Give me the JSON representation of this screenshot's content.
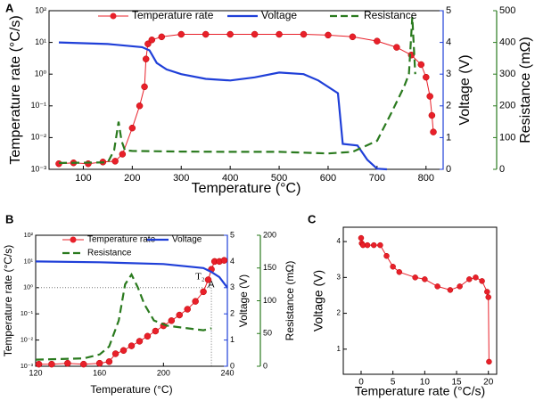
{
  "chart_data": [
    {
      "type": "line",
      "panel_label": "A",
      "xlabel": "Temperature (°C)",
      "ylabel": "Temperature rate (°C/s)",
      "y2label": "Voltage (V)",
      "y3label": "Resistance (mΩ)",
      "xlim": [
        30,
        835
      ],
      "xticks": [
        100,
        200,
        300,
        400,
        500,
        600,
        700,
        800
      ],
      "ylog": true,
      "ylim": [
        0.001,
        100
      ],
      "yticks": [
        {
          "value": 0.001,
          "label": "10⁻³"
        },
        {
          "value": 0.01,
          "label": "10⁻²"
        },
        {
          "value": 0.1,
          "label": "10⁻¹"
        },
        {
          "value": 1,
          "label": "10⁰"
        },
        {
          "value": 10,
          "label": "10¹"
        },
        {
          "value": 100,
          "label": "10²"
        }
      ],
      "y2lim": [
        0,
        5
      ],
      "y2ticks": [
        0,
        1,
        2,
        3,
        4,
        5
      ],
      "y3lim": [
        0,
        500
      ],
      "y3ticks": [
        0,
        100,
        200,
        300,
        400,
        500
      ],
      "series": [
        {
          "name": "Temperature rate",
          "color": "#e8202a",
          "axis": "y",
          "marker": "circle",
          "x": [
            50,
            80,
            110,
            140,
            165,
            180,
            200,
            215,
            225,
            228,
            232,
            240,
            260,
            300,
            350,
            400,
            450,
            500,
            550,
            600,
            650,
            700,
            740,
            770,
            790,
            800,
            808,
            812,
            815
          ],
          "values": [
            0.0015,
            0.0016,
            0.0015,
            0.0017,
            0.0018,
            0.003,
            0.02,
            0.1,
            0.4,
            3,
            9,
            12,
            15,
            18,
            18,
            18,
            18,
            18,
            18,
            17,
            15,
            11,
            7,
            4,
            2,
            0.8,
            0.2,
            0.05,
            0.015
          ]
        },
        {
          "name": "Voltage",
          "color": "#1f3fd8",
          "axis": "y2",
          "x": [
            50,
            150,
            220,
            235,
            250,
            270,
            300,
            350,
            400,
            450,
            500,
            550,
            580,
            620,
            630,
            660,
            680,
            700,
            720
          ],
          "values": [
            4.0,
            3.95,
            3.85,
            3.75,
            3.35,
            3.15,
            3.0,
            2.85,
            2.8,
            2.9,
            3.05,
            3.0,
            2.8,
            2.4,
            0.8,
            0.75,
            0.3,
            0.02,
            0.0
          ]
        },
        {
          "name": "Resistance",
          "color": "#2a7a1e",
          "axis": "y3",
          "line_style": "dashed",
          "x": [
            50,
            150,
            163,
            172,
            178,
            185,
            200,
            300,
            400,
            500,
            600,
            650,
            700,
            730,
            755,
            765,
            772,
            778
          ],
          "values": [
            20,
            22,
            60,
            150,
            90,
            60,
            58,
            56,
            55,
            55,
            50,
            55,
            90,
            180,
            260,
            300,
            480,
            300
          ]
        }
      ]
    },
    {
      "type": "line",
      "panel_label": "B",
      "xlabel": "Temperature (°C)",
      "ylabel": "Temperature rate (°C/s)",
      "y2label": "Voltage (V)",
      "y3label": "Resistance (mΩ)",
      "xlim": [
        120,
        240
      ],
      "xticks": [
        120,
        160,
        200,
        240
      ],
      "ylog": true,
      "ylim": [
        0.001,
        100
      ],
      "yticks": [
        {
          "value": 0.001,
          "label": "10⁻³"
        },
        {
          "value": 0.01,
          "label": "10⁻²"
        },
        {
          "value": 0.1,
          "label": "10⁻¹"
        },
        {
          "value": 1,
          "label": "10⁰"
        },
        {
          "value": 10,
          "label": "10¹"
        },
        {
          "value": 100,
          "label": "10²"
        }
      ],
      "y2lim": [
        0,
        5
      ],
      "y2ticks": [
        0,
        1,
        2,
        3,
        4,
        5
      ],
      "y3lim": [
        0,
        200
      ],
      "y3ticks": [
        0,
        50,
        100,
        150,
        200
      ],
      "annotations": [
        "T₂",
        "A"
      ],
      "vline": 230,
      "hline": 1,
      "series": [
        {
          "name": "Temperature rate",
          "color": "#e8202a",
          "axis": "y",
          "marker": "circle",
          "x": [
            122,
            130,
            140,
            150,
            160,
            166,
            170,
            175,
            180,
            185,
            190,
            195,
            200,
            205,
            210,
            215,
            220,
            225,
            228,
            230,
            232,
            235,
            238
          ],
          "values": [
            0.0012,
            0.0012,
            0.0013,
            0.0012,
            0.0013,
            0.0015,
            0.003,
            0.004,
            0.006,
            0.009,
            0.014,
            0.022,
            0.035,
            0.055,
            0.09,
            0.15,
            0.3,
            0.7,
            2,
            5,
            10,
            10,
            11
          ]
        },
        {
          "name": "Voltage",
          "color": "#1f3fd8",
          "axis": "y2",
          "x": [
            120,
            160,
            200,
            225,
            230,
            235,
            240
          ],
          "values": [
            4.0,
            3.97,
            3.9,
            3.75,
            3.6,
            3.4,
            3.0
          ]
        },
        {
          "name": "Resistance",
          "color": "#2a7a1e",
          "axis": "y3",
          "line_style": "dashed",
          "x": [
            120,
            150,
            160,
            166,
            172,
            176,
            180,
            184,
            188,
            194,
            202,
            215,
            225,
            230
          ],
          "values": [
            10,
            12,
            18,
            30,
            70,
            125,
            140,
            120,
            95,
            70,
            62,
            58,
            55,
            58
          ]
        }
      ]
    },
    {
      "type": "line",
      "panel_label": "C",
      "xlabel": "Temperature rate (°C/s)",
      "ylabel": "Voltage (V)",
      "xlim": [
        -2.8,
        21.3
      ],
      "xticks": [
        0,
        5,
        10,
        15,
        20
      ],
      "ylim": [
        0.3,
        4.4
      ],
      "yticks": [
        1,
        2,
        3,
        4
      ],
      "series": [
        {
          "color": "#e8202a",
          "axis": "y",
          "marker": "circle",
          "x": [
            0,
            0.1,
            0.3,
            1,
            2,
            3,
            4,
            5,
            6,
            8.5,
            10,
            12,
            14,
            15.5,
            17,
            18,
            19,
            19.8,
            20,
            20.1
          ],
          "values": [
            4.1,
            3.95,
            3.9,
            3.9,
            3.9,
            3.9,
            3.6,
            3.3,
            3.15,
            3.0,
            2.95,
            2.75,
            2.65,
            2.75,
            2.95,
            3.0,
            2.9,
            2.6,
            2.45,
            0.65
          ]
        }
      ]
    }
  ]
}
